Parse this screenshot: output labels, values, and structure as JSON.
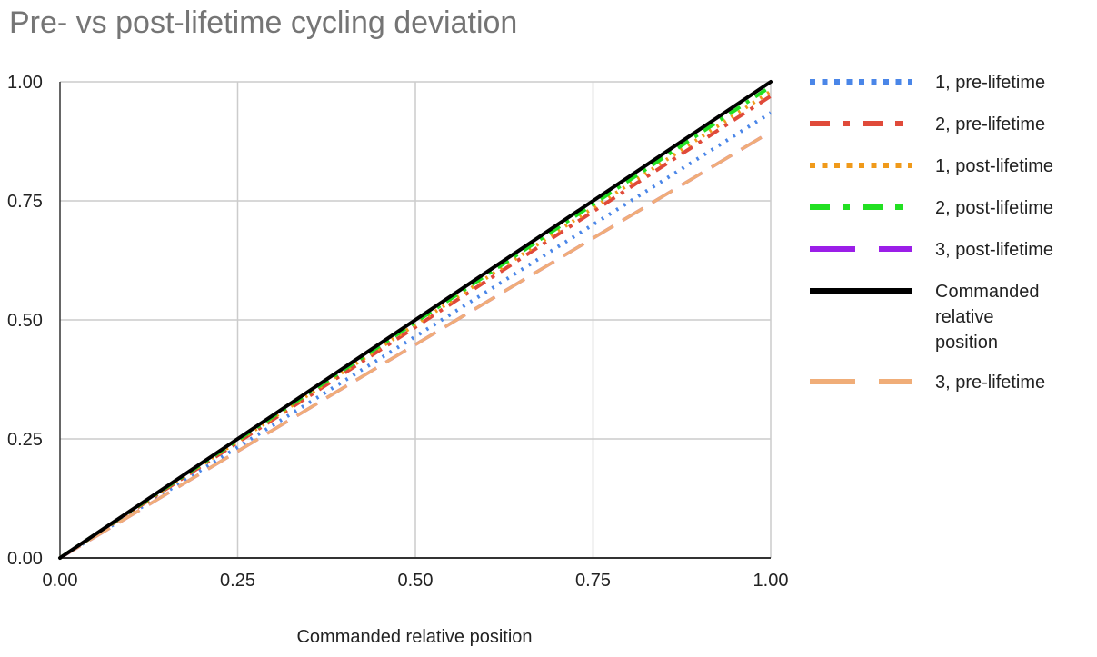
{
  "chart_data": {
    "type": "line",
    "title": "Pre- vs post-lifetime cycling deviation",
    "xlabel": "Commanded relative position",
    "ylabel": "",
    "xlim": [
      0,
      1
    ],
    "ylim": [
      0,
      1
    ],
    "x_ticks": [
      "0.00",
      "0.25",
      "0.50",
      "0.75",
      "1.00"
    ],
    "y_ticks": [
      "0.00",
      "0.25",
      "0.50",
      "0.75",
      "1.00"
    ],
    "grid": true,
    "legend_position": "right",
    "series": [
      {
        "name": "1, pre-lifetime",
        "color": "#4a86e8",
        "style": "dotted",
        "x": [
          0,
          0.5,
          1
        ],
        "y": [
          0,
          0.465,
          0.935
        ]
      },
      {
        "name": "2, pre-lifetime",
        "color": "#e04a3a",
        "style": "dash-dot",
        "x": [
          0,
          0.5,
          1
        ],
        "y": [
          0,
          0.485,
          0.97
        ]
      },
      {
        "name": "1, post-lifetime",
        "color": "#f09a1a",
        "style": "dotted",
        "x": [
          0,
          0.5,
          1
        ],
        "y": [
          0,
          0.49,
          0.98
        ]
      },
      {
        "name": "2, post-lifetime",
        "color": "#22e022",
        "style": "dash-dot",
        "x": [
          0,
          0.5,
          1
        ],
        "y": [
          0,
          0.495,
          0.99
        ]
      },
      {
        "name": "3, post-lifetime",
        "color": "#9b1ee8",
        "style": "long-dash",
        "x": [
          0,
          0.5,
          1
        ],
        "y": [
          0,
          0.448,
          0.895
        ]
      },
      {
        "name": "Commanded relative position",
        "color": "#000000",
        "style": "solid",
        "x": [
          0,
          0.5,
          1
        ],
        "y": [
          0,
          0.5,
          1
        ]
      },
      {
        "name": "3, pre-lifetime",
        "color": "#f0ad78",
        "style": "long-dash",
        "x": [
          0,
          0.5,
          1
        ],
        "y": [
          0,
          0.448,
          0.895
        ]
      }
    ]
  }
}
